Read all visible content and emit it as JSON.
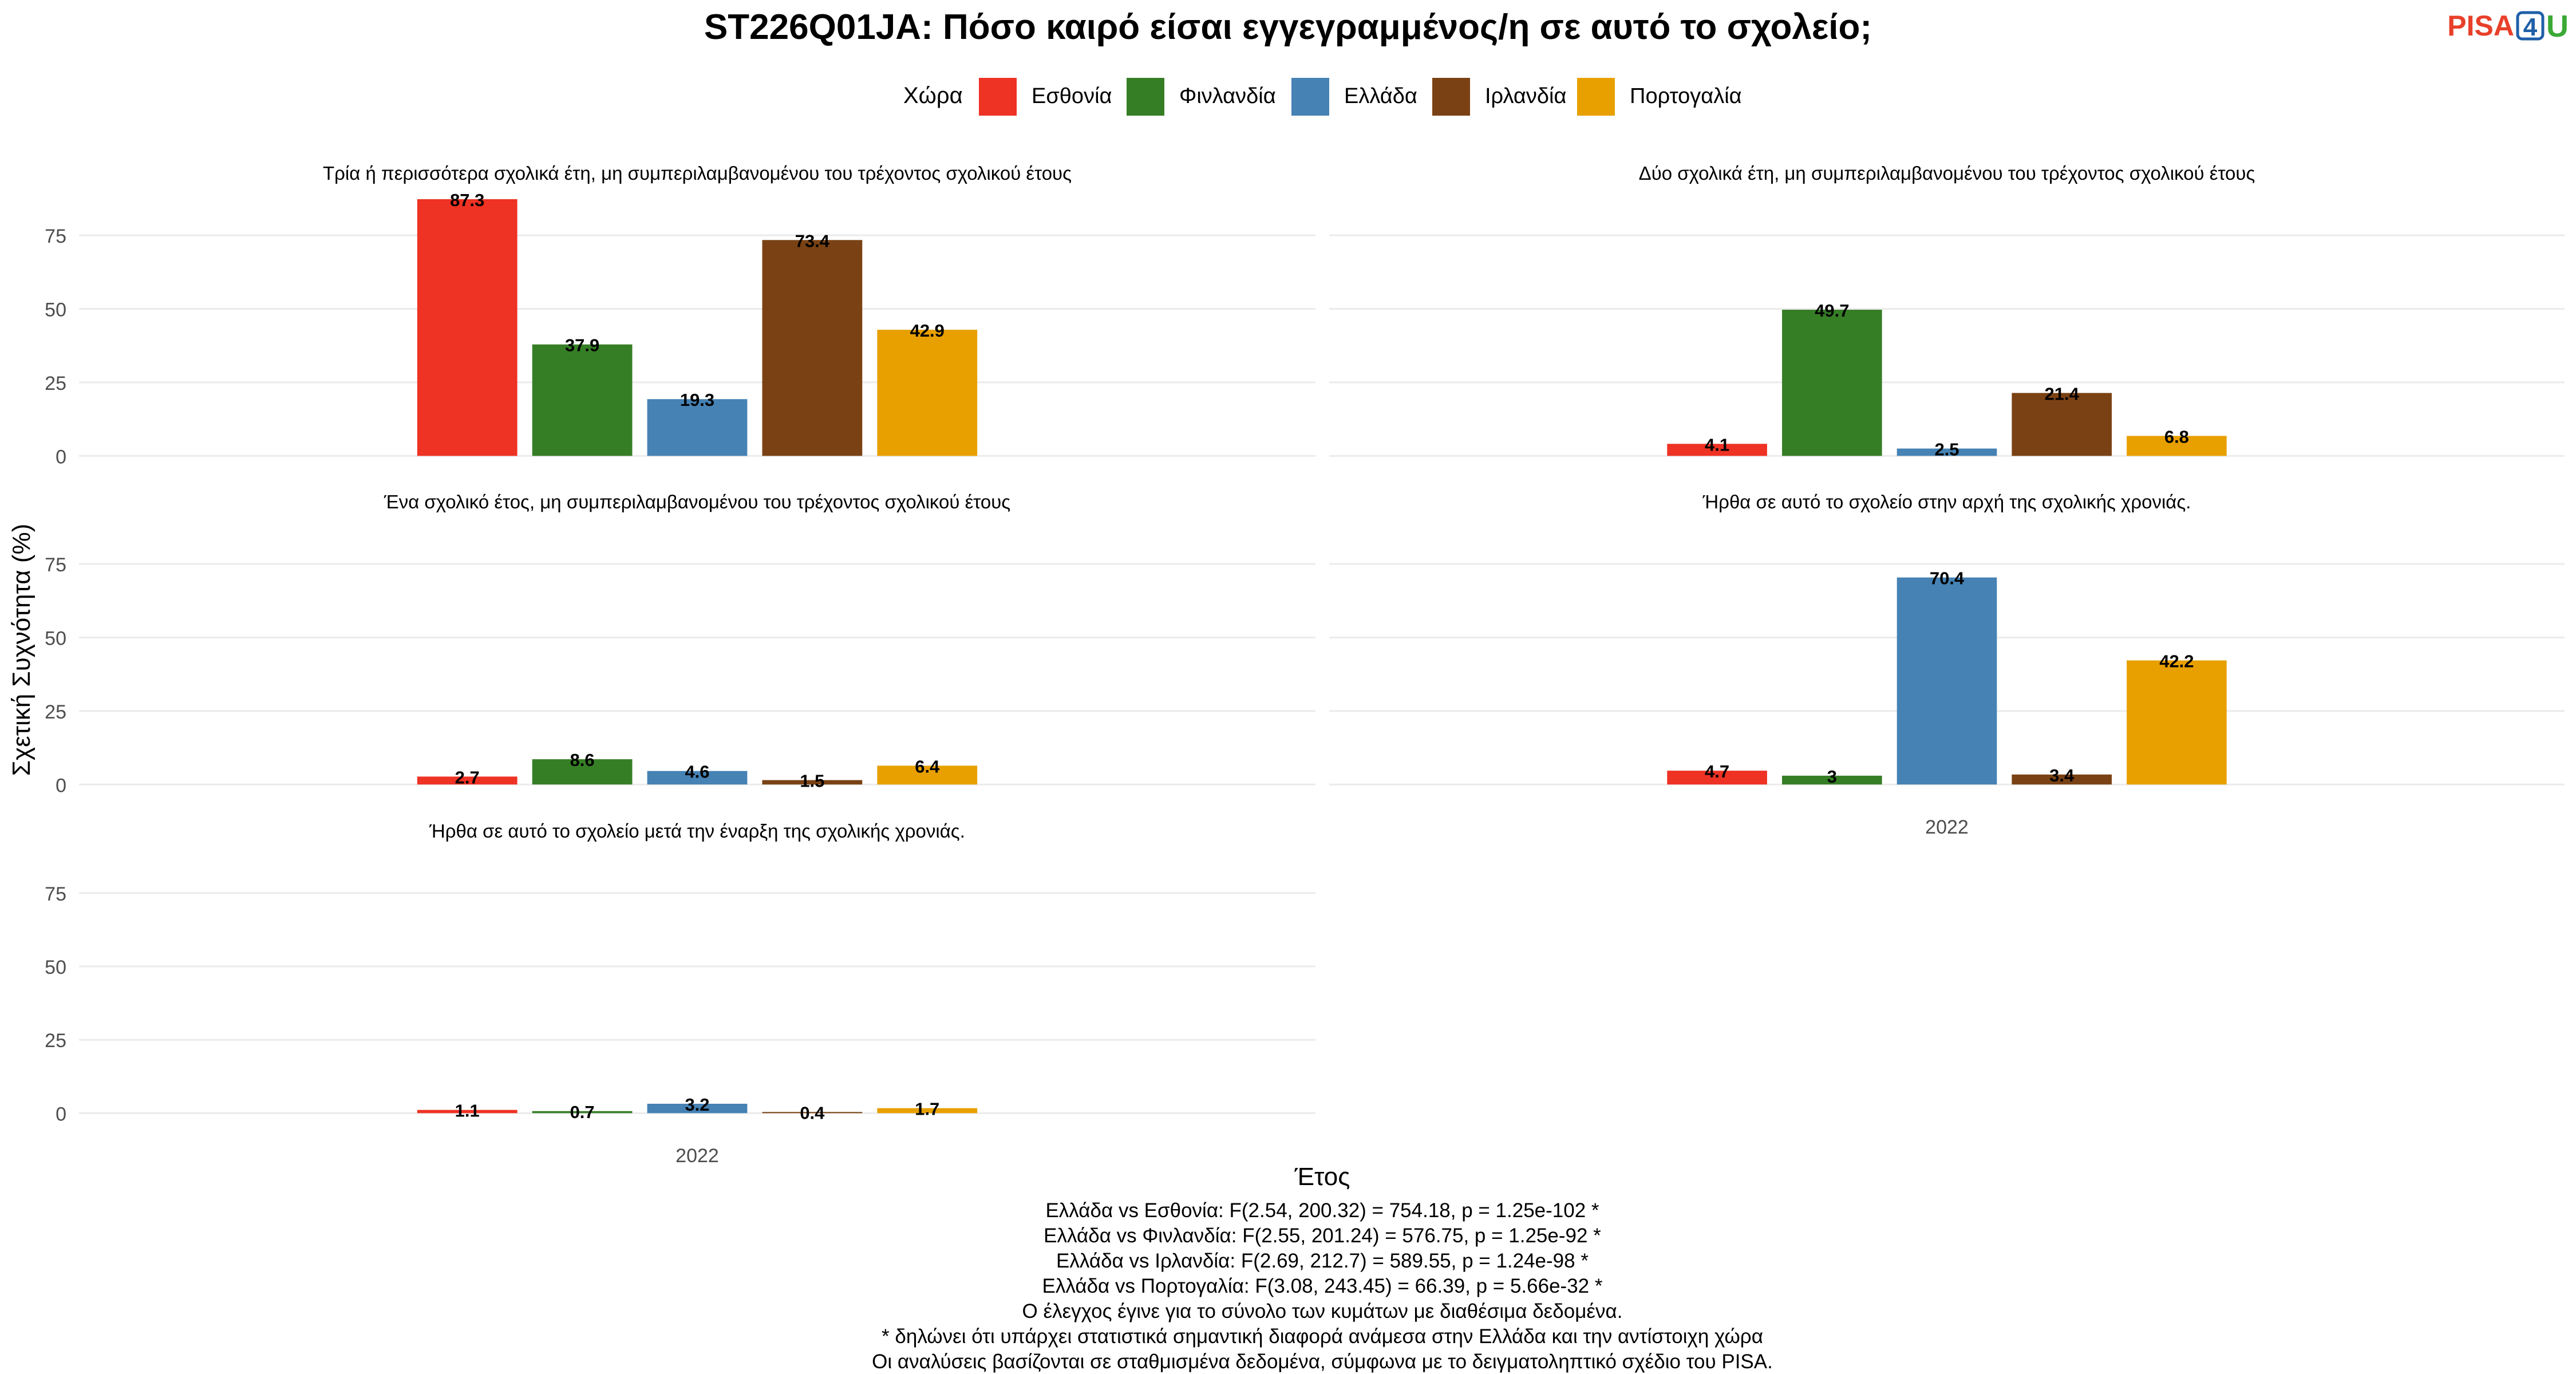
{
  "header": {
    "title": "ST226Q01JA: Πόσο καιρό είσαι εγγεγραμμένος/η σε αυτό το σχολείο;"
  },
  "logo": {
    "text_main": "PISA",
    "text_num": "4",
    "text_end": "U",
    "colors": {
      "main": "#e8402a",
      "num": "#1f5fa8",
      "end": "#3aa935"
    }
  },
  "legend": {
    "title": "Χώρα",
    "placement": "top"
  },
  "chart_data": {
    "type": "bar",
    "facet_layout": "3x2",
    "ylabel": "Σχετική Συχνότητα (%)",
    "xlabel": "Έτος",
    "ylim": [
      0,
      90
    ],
    "yticks": [
      0,
      25,
      50,
      75
    ],
    "grid": true,
    "x_categories": [
      "2022"
    ],
    "series": [
      {
        "name": "Εσθονία",
        "color": "#ee3224"
      },
      {
        "name": "Φινλανδία",
        "color": "#367e26"
      },
      {
        "name": "Ελλάδα",
        "color": "#4682b4"
      },
      {
        "name": "Ιρλανδία",
        "color": "#7a4214"
      },
      {
        "name": "Πορτογαλία",
        "color": "#e8a000"
      }
    ],
    "panels": [
      {
        "title": "Τρία ή περισσότερα σχολικά έτη, μη συμπεριλαμβανομένου του τρέχοντος σχολικού έτους",
        "values": [
          87.3,
          37.9,
          19.3,
          73.4,
          42.9
        ],
        "labels": [
          "87.3",
          "37.9",
          "19.3",
          "73.4",
          "42.9"
        ]
      },
      {
        "title": "Δύο σχολικά έτη, μη συμπεριλαμβανομένου του τρέχοντος σχολικού έτους",
        "values": [
          4.1,
          49.7,
          2.5,
          21.4,
          6.8
        ],
        "labels": [
          "4.1",
          "49.7",
          "2.5",
          "21.4",
          "6.8"
        ]
      },
      {
        "title": "Ένα σχολικό έτος, μη συμπεριλαμβανομένου του τρέχοντος σχολικού έτους",
        "values": [
          2.7,
          8.6,
          4.6,
          1.5,
          6.4
        ],
        "labels": [
          "2.7",
          "8.6",
          "4.6",
          "1.5",
          "6.4"
        ]
      },
      {
        "title": "Ήρθα σε αυτό το σχολείο στην αρχή της σχολικής χρονιάς.",
        "values": [
          4.7,
          3,
          70.4,
          3.4,
          42.2
        ],
        "labels": [
          "4.7",
          "3",
          "70.4",
          "3.4",
          "42.2"
        ]
      },
      {
        "title": "Ήρθα σε αυτό το σχολείο μετά την έναρξη της σχολικής χρονιάς.",
        "values": [
          1.1,
          0.7,
          3.2,
          0.4,
          1.7
        ],
        "labels": [
          "1.1",
          "0.7",
          "3.2",
          "0.4",
          "1.7"
        ]
      }
    ]
  },
  "caption": {
    "lines": [
      "Ελλάδα vs Εσθονία: F(2.54, 200.32) = 754.18, p = 1.25e-102 *",
      "Ελλάδα vs Φινλανδία: F(2.55, 201.24) = 576.75, p = 1.25e-92 *",
      "Ελλάδα vs Ιρλανδία: F(2.69, 212.7) = 589.55, p = 1.24e-98 *",
      "Ελλάδα vs Πορτογαλία: F(3.08, 243.45) = 66.39, p = 5.66e-32 *",
      "Ο έλεγχος έγινε για το σύνολο των κυμάτων με διαθέσιμα δεδομένα.",
      "* δηλώνει ότι υπάρχει στατιστικά σημαντική διαφορά ανάμεσα στην Ελλάδα και την αντίστοιχη χώρα",
      "Οι αναλύσεις βασίζονται σε σταθμισμένα δεδομένα, σύμφωνα με το δειγματοληπτικό σχέδιο του PISA."
    ]
  }
}
